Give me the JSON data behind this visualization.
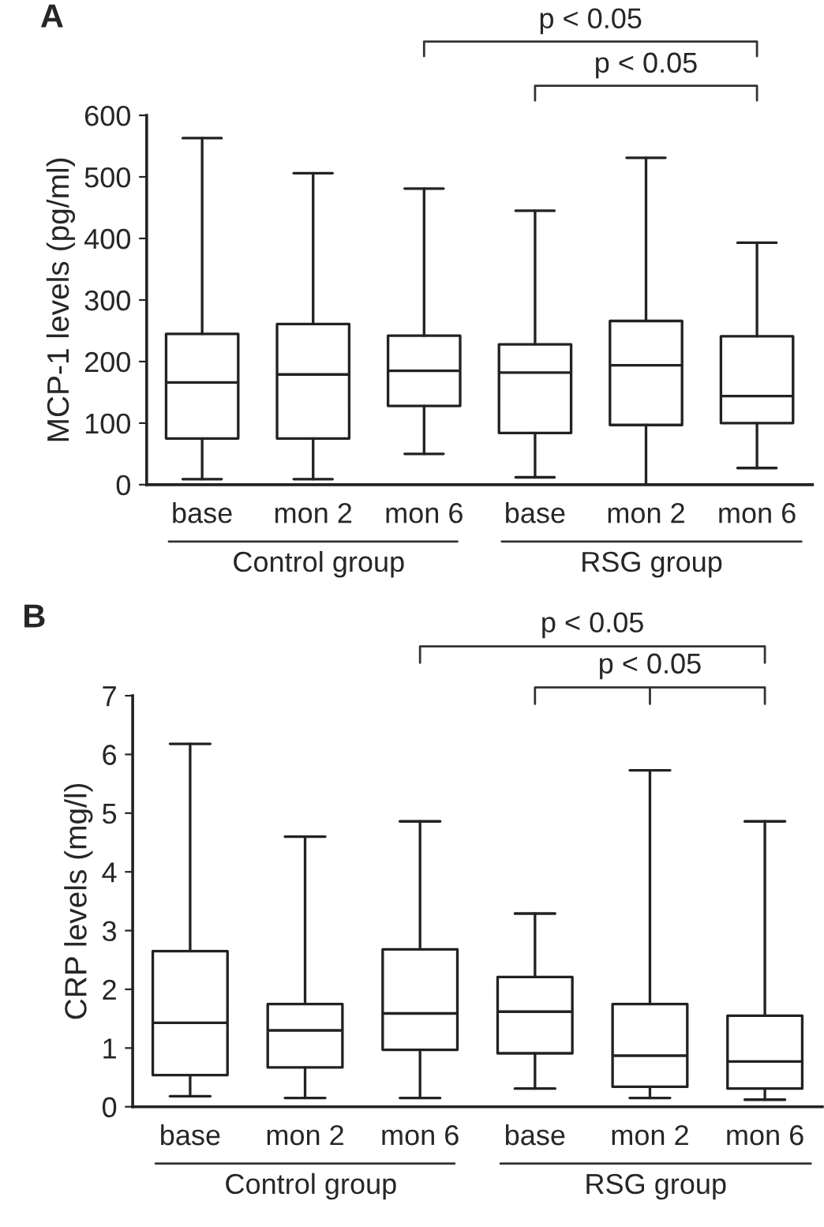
{
  "chart_data": [
    {
      "type": "box",
      "title": "A",
      "ylabel": "MCP-1 levels (pg/ml)",
      "categories": [
        "base",
        "mon 2",
        "mon 6",
        "base",
        "mon 2",
        "mon 6"
      ],
      "ylim": [
        0,
        600
      ],
      "yticks": [
        0,
        100,
        200,
        300,
        400,
        500,
        600
      ],
      "grid": false,
      "boxes": [
        {
          "low": 9,
          "q1": 75,
          "median": 166,
          "q3": 245,
          "high": 563
        },
        {
          "low": 9,
          "q1": 75,
          "median": 179,
          "q3": 261,
          "high": 506
        },
        {
          "low": 50,
          "q1": 128,
          "median": 185,
          "q3": 242,
          "high": 481
        },
        {
          "low": 12,
          "q1": 84,
          "median": 182,
          "q3": 228,
          "high": 445
        },
        {
          "low": 0,
          "q1": 97,
          "median": 194,
          "q3": 266,
          "high": 531
        },
        {
          "low": 27,
          "q1": 100,
          "median": 144,
          "q3": 241,
          "high": 393
        }
      ],
      "annotations": [
        "p < 0.05",
        "p < 0.05",
        "Control group",
        "RSG group"
      ]
    },
    {
      "type": "box",
      "title": "B",
      "ylabel": "CRP levels (mg/l)",
      "categories": [
        "base",
        "mon 2",
        "mon 6",
        "base",
        "mon 2",
        "mon 6"
      ],
      "ylim": [
        0,
        7
      ],
      "yticks": [
        0,
        1,
        2,
        3,
        4,
        5,
        6,
        7
      ],
      "grid": false,
      "boxes": [
        {
          "low": 0.18,
          "q1": 0.54,
          "median": 1.43,
          "q3": 2.65,
          "high": 6.18
        },
        {
          "low": 0.15,
          "q1": 0.67,
          "median": 1.3,
          "q3": 1.75,
          "high": 4.6
        },
        {
          "low": 0.15,
          "q1": 0.97,
          "median": 1.59,
          "q3": 2.68,
          "high": 4.86
        },
        {
          "low": 0.31,
          "q1": 0.91,
          "median": 1.62,
          "q3": 2.21,
          "high": 3.29
        },
        {
          "low": 0.15,
          "q1": 0.34,
          "median": 0.87,
          "q3": 1.75,
          "high": 5.73
        },
        {
          "low": 0.12,
          "q1": 0.31,
          "median": 0.77,
          "q3": 1.55,
          "high": 4.86
        }
      ],
      "annotations": [
        "p < 0.05",
        "p < 0.05",
        "Control group",
        "RSG group"
      ]
    }
  ]
}
